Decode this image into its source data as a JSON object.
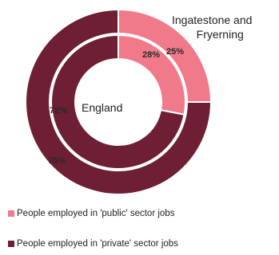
{
  "chart_data": {
    "type": "pie",
    "series": [
      {
        "name": "Ingatestone and Fryerning",
        "values": [
          25,
          75
        ]
      },
      {
        "name": "England",
        "values": [
          28,
          72
        ]
      }
    ],
    "categories": [
      "People employed in 'public' sector jobs",
      "People employed in 'private' sector jobs"
    ],
    "value_labels": [
      [
        "25%",
        "75%"
      ],
      [
        "28%",
        "72%"
      ]
    ],
    "colors": [
      "#f07a8a",
      "#6e1f33"
    ]
  },
  "labels": {
    "outer_name_line1": "Ingatestone and",
    "outer_name_line2": "Fryerning",
    "inner_name": "England"
  },
  "legend": {
    "public_label": "People employed in 'public' sector jobs",
    "private_label": "People employed in 'private' sector jobs"
  }
}
